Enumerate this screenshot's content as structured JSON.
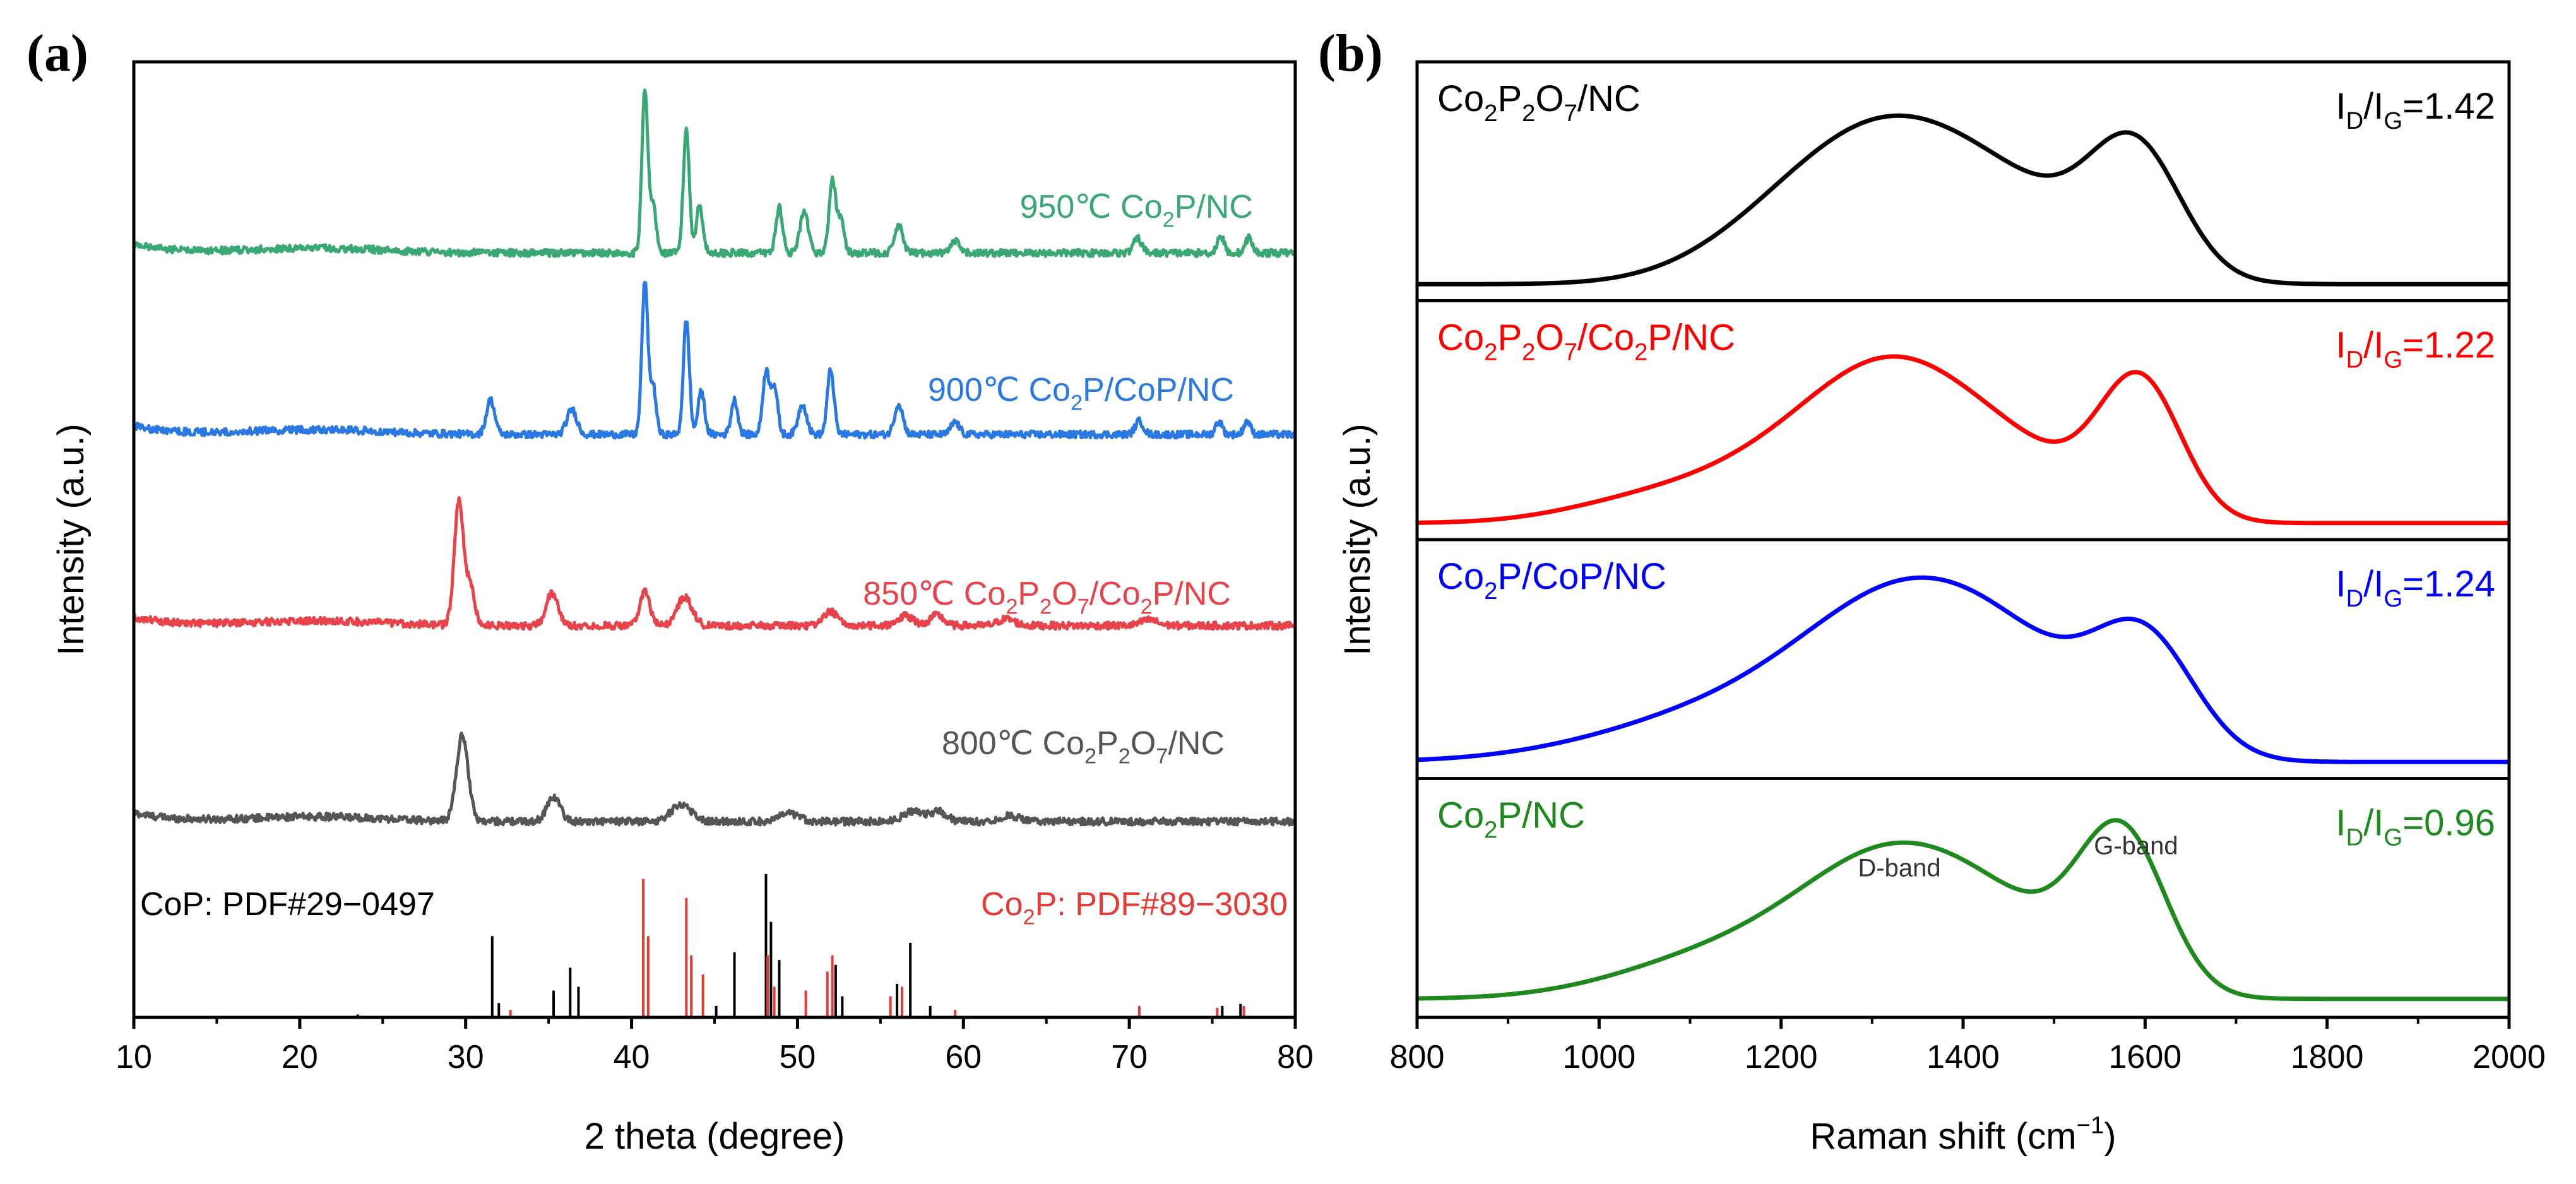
{
  "panel_labels": [
    "(a)",
    "(b)"
  ],
  "chart_data": [
    {
      "type": "line",
      "panel": "(a)",
      "xlabel": "2 theta (degree)",
      "ylabel": "Intensity (a.u.)",
      "xlim": [
        10,
        80
      ],
      "xticks": [
        "10",
        "20",
        "30",
        "40",
        "50",
        "60",
        "70",
        "80"
      ],
      "ylim": [
        0,
        100
      ],
      "yticks": [],
      "series": [
        {
          "name": "800℃ Co2P2O7/NC",
          "label_parts": [
            [
              "800℃ Co",
              "n"
            ],
            [
              "2",
              "sub"
            ],
            [
              "P",
              "n"
            ],
            [
              "2",
              "sub"
            ],
            [
              "O",
              "n"
            ],
            [
              "7",
              "sub"
            ],
            [
              "/NC",
              "n"
            ]
          ],
          "color": "#555555",
          "baseline": 20.5,
          "peaks": [
            [
              29.8,
              9,
              0.35
            ],
            [
              35.3,
              2.6,
              0.4
            ],
            [
              43.0,
              1.8,
              0.6
            ],
            [
              49.5,
              0.8,
              0.6
            ],
            [
              57.0,
              1.1,
              0.6
            ],
            [
              58.5,
              1.0,
              0.5
            ],
            [
              62.8,
              0.6,
              0.6
            ]
          ]
        },
        {
          "name": "850℃ Co2P2O7/Co2P/NC",
          "label_parts": [
            [
              "850℃ Co",
              "n"
            ],
            [
              "2",
              "sub"
            ],
            [
              "P",
              "n"
            ],
            [
              "2",
              "sub"
            ],
            [
              "O",
              "n"
            ],
            [
              "7",
              "sub"
            ],
            [
              "/Co",
              "n"
            ],
            [
              "2",
              "sub"
            ],
            [
              "P/NC",
              "n"
            ]
          ],
          "color": "#e8434a",
          "baseline": 41,
          "peaks": [
            [
              29.6,
              13,
              0.28
            ],
            [
              30.3,
              4,
              0.25
            ],
            [
              35.2,
              3.4,
              0.35
            ],
            [
              40.8,
              3.6,
              0.3
            ],
            [
              43.2,
              3.0,
              0.45
            ],
            [
              52.0,
              1.5,
              0.4
            ],
            [
              56.5,
              1.0,
              0.5
            ],
            [
              58.4,
              1.1,
              0.4
            ],
            [
              62.6,
              0.7,
              0.5
            ],
            [
              71.2,
              0.6,
              0.5
            ]
          ]
        },
        {
          "name": "900℃ Co2P/CoP/NC",
          "label_parts": [
            [
              "900℃ Co",
              "n"
            ],
            [
              "2",
              "sub"
            ],
            [
              "P/CoP/NC",
              "n"
            ]
          ],
          "color": "#2a78e4",
          "baseline": 61,
          "peaks": [
            [
              31.5,
              3.6,
              0.25
            ],
            [
              36.4,
              2.6,
              0.3
            ],
            [
              40.8,
              16,
              0.18
            ],
            [
              41.3,
              5,
              0.18
            ],
            [
              43.3,
              12,
              0.18
            ],
            [
              44.2,
              4.5,
              0.2
            ],
            [
              46.2,
              3.6,
              0.2
            ],
            [
              48.1,
              6.5,
              0.2
            ],
            [
              48.6,
              5,
              0.2
            ],
            [
              50.3,
              3.2,
              0.25
            ],
            [
              52.0,
              6.8,
              0.2
            ],
            [
              56.1,
              3.2,
              0.25
            ],
            [
              59.5,
              1.3,
              0.25
            ],
            [
              70.6,
              1.4,
              0.25
            ],
            [
              75.4,
              1.4,
              0.2
            ],
            [
              77.1,
              1.4,
              0.2
            ]
          ]
        },
        {
          "name": "950℃ Co2P/NC",
          "label_parts": [
            [
              "950℃ Co",
              "n"
            ],
            [
              "2",
              "sub"
            ],
            [
              "P/NC",
              "n"
            ]
          ],
          "color": "#3aa872",
          "baseline": 80,
          "peaks": [
            [
              40.8,
              17,
              0.18
            ],
            [
              41.3,
              5,
              0.18
            ],
            [
              43.3,
              13,
              0.18
            ],
            [
              44.1,
              5,
              0.2
            ],
            [
              48.9,
              4.8,
              0.2
            ],
            [
              50.4,
              4.2,
              0.25
            ],
            [
              52.1,
              7.5,
              0.2
            ],
            [
              52.6,
              3.5,
              0.2
            ],
            [
              56.1,
              2.8,
              0.25
            ],
            [
              59.5,
              1.2,
              0.25
            ],
            [
              70.5,
              1.5,
              0.25
            ],
            [
              75.5,
              1.8,
              0.2
            ],
            [
              77.2,
              1.6,
              0.2
            ]
          ]
        }
      ],
      "references": [
        {
          "name": "CoP: PDF#29−0497",
          "color": "#000000",
          "sticks": [
            [
              23.5,
              0.3
            ],
            [
              31.6,
              8.5
            ],
            [
              32.0,
              1.5
            ],
            [
              35.3,
              2.8
            ],
            [
              36.3,
              5.2
            ],
            [
              36.8,
              3.2
            ],
            [
              45.1,
              1.2
            ],
            [
              46.2,
              6.8
            ],
            [
              48.1,
              15
            ],
            [
              48.4,
              10
            ],
            [
              48.9,
              6
            ],
            [
              52.3,
              5.5
            ],
            [
              52.7,
              2.2
            ],
            [
              56.0,
              3.5
            ],
            [
              56.8,
              7.8
            ],
            [
              58.0,
              1.2
            ],
            [
              75.6,
              1.2
            ],
            [
              76.7,
              1.4
            ]
          ]
        },
        {
          "name": "Co2P: PDF#89−3030",
          "label_parts": [
            [
              "Co",
              "n"
            ],
            [
              "2",
              "sub"
            ],
            [
              "P: PDF#89−3030",
              "n"
            ]
          ],
          "color": "#e53935",
          "sticks": [
            [
              32.7,
              0.8
            ],
            [
              40.7,
              14.5
            ],
            [
              41.0,
              8.5
            ],
            [
              43.3,
              12.5
            ],
            [
              43.6,
              6.5
            ],
            [
              44.3,
              4.5
            ],
            [
              48.2,
              6.5
            ],
            [
              48.6,
              3.2
            ],
            [
              50.5,
              2.8
            ],
            [
              51.8,
              4.8
            ],
            [
              52.1,
              6.5
            ],
            [
              55.6,
              2.2
            ],
            [
              56.3,
              3.2
            ],
            [
              59.5,
              0.8
            ],
            [
              70.6,
              1.2
            ],
            [
              75.3,
              1.0
            ],
            [
              76.9,
              1.2
            ]
          ]
        }
      ]
    },
    {
      "type": "line",
      "panel": "(b)",
      "xlabel": "Raman shift (cm−1)",
      "xlabel_parts": [
        [
          "Raman shift (cm",
          "n"
        ],
        [
          "−1",
          "sup"
        ],
        [
          ")",
          "n"
        ]
      ],
      "ylabel": "Intensity (a.u.)",
      "xlim": [
        800,
        2000
      ],
      "xticks": [
        "800",
        "1000",
        "1200",
        "1400",
        "1600",
        "1800",
        "2000"
      ],
      "subplots": [
        {
          "name": "Co2P2O7/NC",
          "label_parts": [
            [
              "Co",
              "n"
            ],
            [
              "2",
              "sub"
            ],
            [
              "P",
              "n"
            ],
            [
              "2",
              "sub"
            ],
            [
              "O",
              "n"
            ],
            [
              "7",
              "sub"
            ],
            [
              "/NC",
              "n"
            ]
          ],
          "ratio": "ID/IG=1.42",
          "ratio_parts": [
            [
              "I",
              "n"
            ],
            [
              "D",
              "sub"
            ],
            [
              "/I",
              "n"
            ],
            [
              "G",
              "sub"
            ],
            [
              "=1.42",
              "n"
            ]
          ],
          "color": "#000000",
          "baseline": 0.02,
          "bands": [
            [
              1325,
              0.78,
              110
            ],
            [
              1590,
              0.6,
              50
            ],
            [
              1490,
              0.22,
              90
            ],
            [
              1190,
              0.12,
              90
            ]
          ]
        },
        {
          "name": "Co2P2O7/Co2P/NC",
          "label_parts": [
            [
              "Co",
              "n"
            ],
            [
              "2",
              "sub"
            ],
            [
              "P",
              "n"
            ],
            [
              "2",
              "sub"
            ],
            [
              "O",
              "n"
            ],
            [
              "7",
              "sub"
            ],
            [
              "/Co",
              "n"
            ],
            [
              "2",
              "sub"
            ],
            [
              "P/NC",
              "n"
            ]
          ],
          "ratio": "ID/IG=1.22",
          "ratio_parts": [
            [
              "I",
              "n"
            ],
            [
              "D",
              "sub"
            ],
            [
              "/I",
              "n"
            ],
            [
              "G",
              "sub"
            ],
            [
              "=1.22",
              "n"
            ]
          ],
          "color": "#ff0000",
          "baseline": 0.02,
          "bands": [
            [
              1330,
              0.72,
              95
            ],
            [
              1595,
              0.68,
              45
            ],
            [
              1480,
              0.2,
              80
            ],
            [
              1180,
              0.24,
              110
            ],
            [
              1020,
              0.05,
              80
            ]
          ]
        },
        {
          "name": "Co2P/CoP/NC",
          "label_parts": [
            [
              "Co",
              "n"
            ],
            [
              "2",
              "sub"
            ],
            [
              "P/CoP/NC",
              "n"
            ]
          ],
          "ratio": "ID/IG=1.24",
          "ratio_parts": [
            [
              "I",
              "n"
            ],
            [
              "D",
              "sub"
            ],
            [
              "/I",
              "n"
            ],
            [
              "G",
              "sub"
            ],
            [
              "=1.24",
              "n"
            ]
          ],
          "color": "#0000ff",
          "baseline": 0.02,
          "bands": [
            [
              1350,
              0.78,
              115
            ],
            [
              1600,
              0.55,
              55
            ],
            [
              1480,
              0.2,
              90
            ],
            [
              1150,
              0.25,
              140
            ]
          ]
        },
        {
          "name": "Co2P/NC",
          "label_parts": [
            [
              "Co",
              "n"
            ],
            [
              "2",
              "sub"
            ],
            [
              "P/NC",
              "n"
            ]
          ],
          "ratio": "ID/IG=0.96",
          "ratio_parts": [
            [
              "I",
              "n"
            ],
            [
              "D",
              "sub"
            ],
            [
              "/I",
              "n"
            ],
            [
              "G",
              "sub"
            ],
            [
              "=0.96",
              "n"
            ]
          ],
          "color": "#1e8a1e",
          "baseline": 0.03,
          "bands": [
            [
              1330,
              0.72,
              105
            ],
            [
              1575,
              0.78,
              48
            ],
            [
              1470,
              0.18,
              80
            ],
            [
              1130,
              0.2,
              110
            ]
          ],
          "annotations": [
            "D-band",
            "G-band"
          ]
        }
      ]
    }
  ]
}
